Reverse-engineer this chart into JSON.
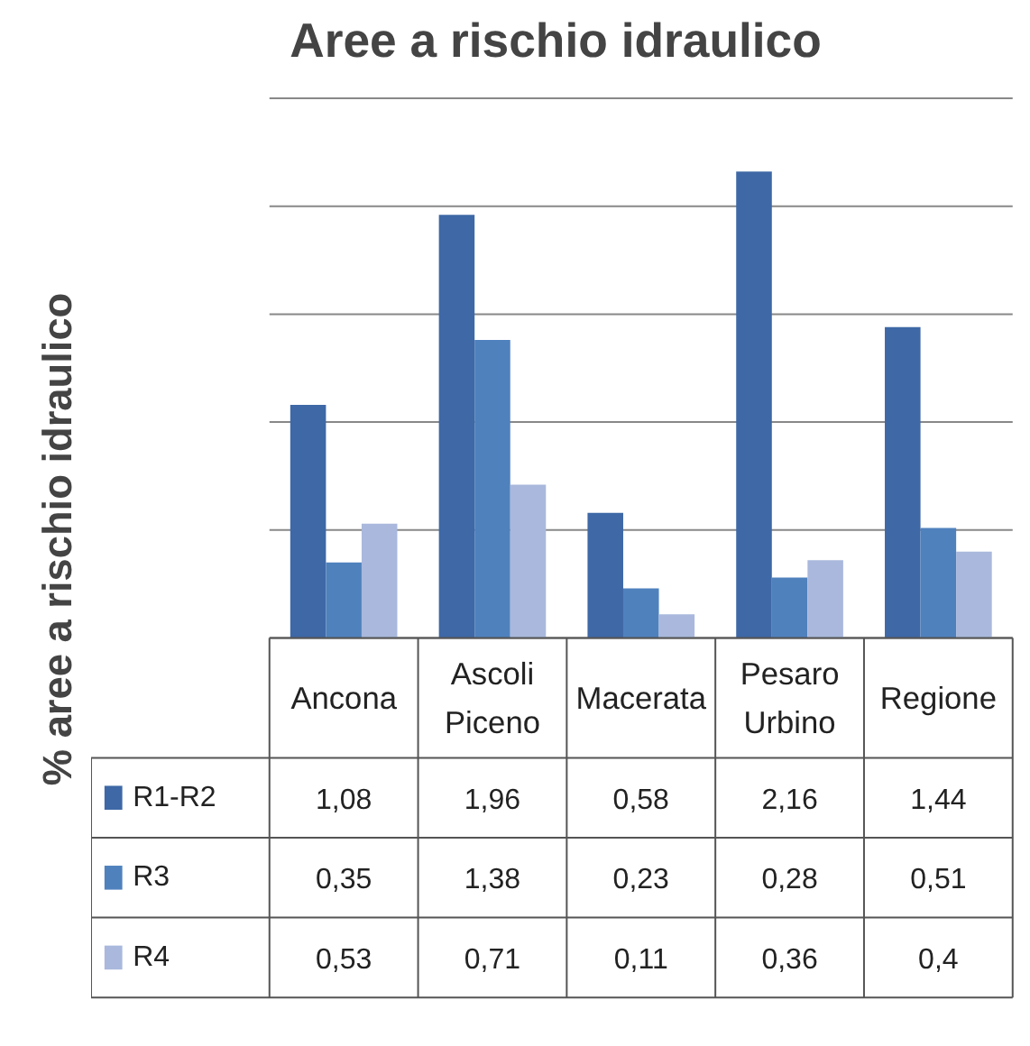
{
  "chart_data": {
    "type": "bar",
    "title": "Aree a rischio idraulico",
    "ylabel": "% aree a rischio idraulico",
    "categories": [
      "Ancona",
      "Ascoli Piceno",
      "Macerata",
      "Pesaro Urbino",
      "Regione"
    ],
    "series": [
      {
        "name": "R1-R2",
        "color": "#3e68a6",
        "values": [
          1.08,
          1.96,
          0.58,
          2.16,
          1.44
        ],
        "value_labels": [
          "1,08",
          "1,96",
          "0,58",
          "2,16",
          "1,44"
        ]
      },
      {
        "name": "R3",
        "color": "#4f81bd",
        "values": [
          0.35,
          1.38,
          0.23,
          0.28,
          0.51
        ],
        "value_labels": [
          "0,35",
          "1,38",
          "0,23",
          "0,28",
          "0,51"
        ]
      },
      {
        "name": "R4",
        "color": "#a9b8dc",
        "values": [
          0.53,
          0.71,
          0.11,
          0.36,
          0.4
        ],
        "value_labels": [
          "0,53",
          "0,71",
          "0,11",
          "0,36",
          "0,4"
        ]
      }
    ],
    "ylim": [
      0,
      2.5
    ],
    "yticks": [
      {
        "value": 0,
        "label": null
      },
      {
        "value": 0.5,
        "label": null
      },
      {
        "value": 1,
        "label": null
      },
      {
        "value": 1.5,
        "label": null
      },
      {
        "value": 2,
        "label": null
      },
      {
        "value": 2.5,
        "label": null
      }
    ],
    "grid": "y",
    "tick_labels": "x",
    "legend": "bottom"
  }
}
